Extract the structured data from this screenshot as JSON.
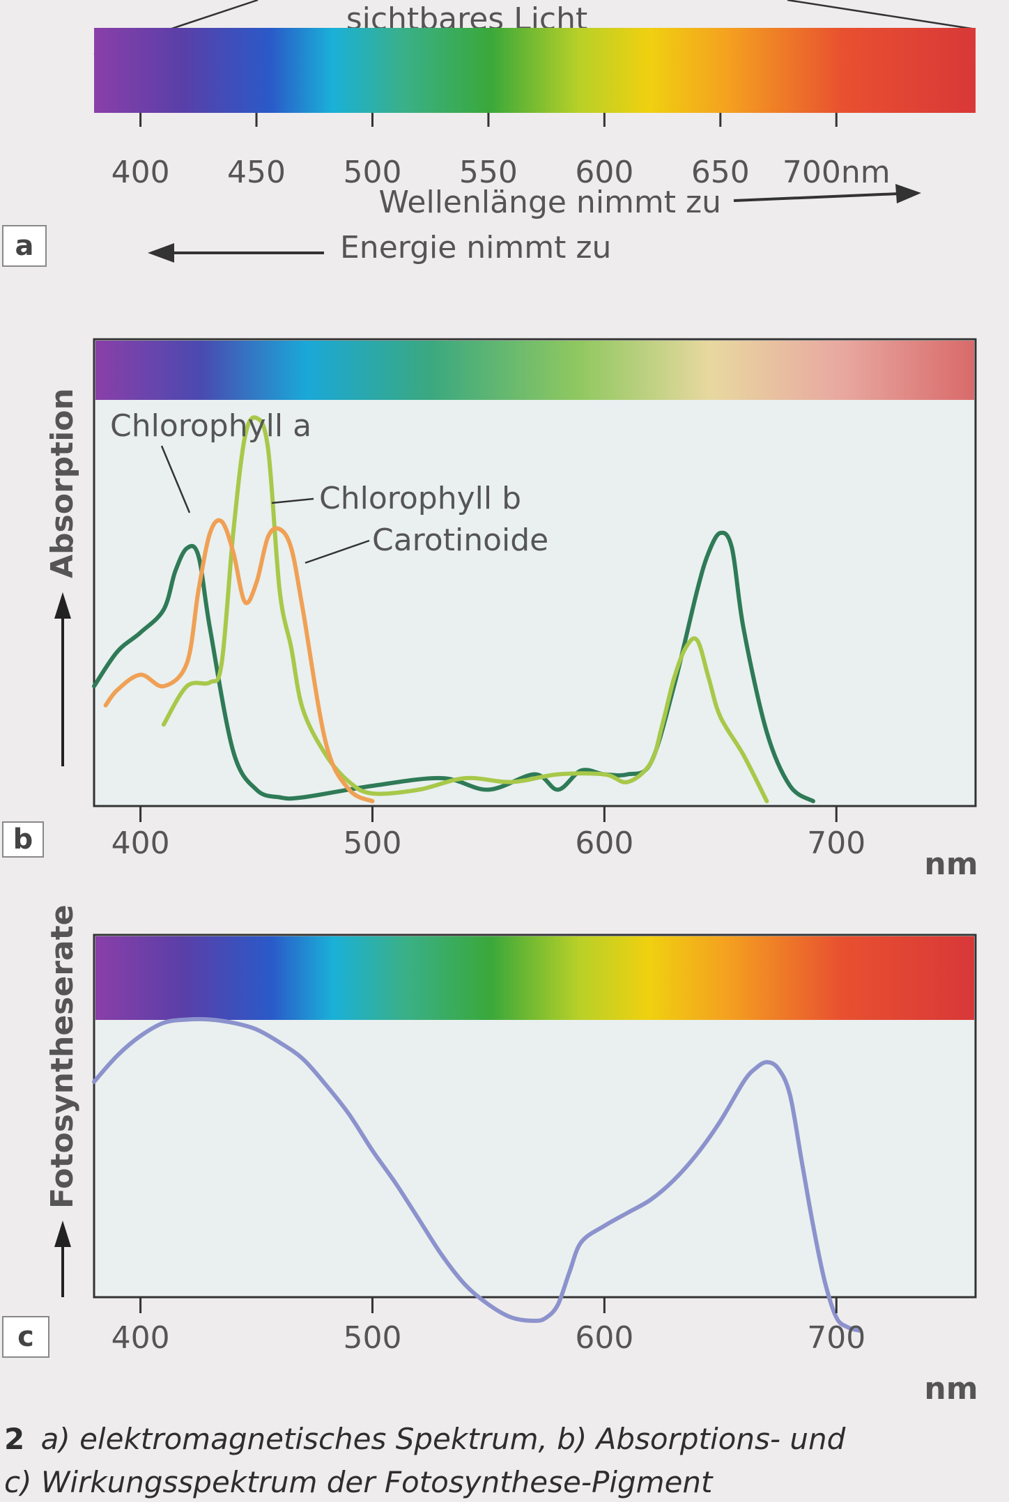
{
  "colors": {
    "chlorophyll_a": "#2f7a57",
    "chlorophyll_b": "#a8c84a",
    "carotinoide": "#f0a055",
    "action": "#8c92cc",
    "plot_bg": "#e9f0ef",
    "spectrum": [
      "#8a3fa8",
      "#5a3fa8",
      "#2a5ac8",
      "#1ab0d8",
      "#3ab08a",
      "#3aa83a",
      "#b8d028",
      "#f0d010",
      "#f4a020",
      "#e85030",
      "#d83838"
    ]
  },
  "chart_data": [
    {
      "panel": "a",
      "type": "spectrum-scale",
      "title": "sichtbares Licht",
      "x_ticks": [
        400,
        450,
        500,
        550,
        600,
        650,
        700
      ],
      "x_unit": "nm",
      "xlim": [
        380,
        760
      ],
      "arrow_right_label": "Wellenlänge nimmt zu",
      "arrow_left_label": "Energie nimmt zu"
    },
    {
      "panel": "b",
      "type": "line",
      "ylabel": "Absorption",
      "xlabel": "nm",
      "xlim": [
        380,
        760
      ],
      "ylim": [
        0,
        1
      ],
      "x_ticks": [
        400,
        500,
        600,
        700
      ],
      "series": [
        {
          "name": "Chlorophyll a",
          "x": [
            380,
            390,
            400,
            410,
            415,
            420,
            425,
            430,
            440,
            450,
            460,
            470,
            500,
            530,
            550,
            570,
            580,
            590,
            600,
            610,
            620,
            630,
            640,
            645,
            650,
            655,
            660,
            670,
            680,
            690
          ],
          "y": [
            0.3,
            0.39,
            0.44,
            0.5,
            0.6,
            0.66,
            0.64,
            0.45,
            0.13,
            0.03,
            0.01,
            0.01,
            0.04,
            0.06,
            0.03,
            0.07,
            0.03,
            0.08,
            0.07,
            0.07,
            0.1,
            0.3,
            0.55,
            0.65,
            0.7,
            0.66,
            0.45,
            0.18,
            0.04,
            0.0
          ]
        },
        {
          "name": "Chlorophyll b",
          "x": [
            410,
            420,
            430,
            435,
            440,
            445,
            450,
            455,
            460,
            465,
            470,
            480,
            490,
            500,
            520,
            540,
            560,
            580,
            600,
            610,
            620,
            625,
            630,
            635,
            640,
            645,
            650,
            660,
            670
          ],
          "y": [
            0.2,
            0.3,
            0.31,
            0.36,
            0.7,
            0.95,
            1.0,
            0.92,
            0.55,
            0.4,
            0.24,
            0.12,
            0.05,
            0.02,
            0.03,
            0.06,
            0.05,
            0.07,
            0.07,
            0.05,
            0.1,
            0.2,
            0.32,
            0.4,
            0.42,
            0.32,
            0.22,
            0.12,
            0.0
          ]
        },
        {
          "name": "Carotinoide",
          "x": [
            385,
            390,
            400,
            410,
            420,
            425,
            430,
            435,
            440,
            445,
            450,
            455,
            460,
            465,
            470,
            480,
            490,
            500
          ],
          "y": [
            0.25,
            0.29,
            0.33,
            0.3,
            0.36,
            0.55,
            0.7,
            0.73,
            0.65,
            0.52,
            0.57,
            0.69,
            0.71,
            0.66,
            0.5,
            0.15,
            0.03,
            0.0
          ]
        }
      ]
    },
    {
      "panel": "c",
      "type": "line",
      "ylabel": "Fotosyntheserate",
      "xlabel": "nm",
      "xlim": [
        380,
        760
      ],
      "ylim": [
        0,
        1
      ],
      "x_ticks": [
        400,
        500,
        600,
        700
      ],
      "series": [
        {
          "name": "Wirkungsspektrum",
          "x": [
            380,
            390,
            400,
            410,
            420,
            430,
            440,
            450,
            460,
            470,
            480,
            490,
            500,
            510,
            520,
            530,
            540,
            550,
            560,
            570,
            575,
            580,
            585,
            590,
            600,
            610,
            620,
            630,
            640,
            650,
            660,
            665,
            670,
            675,
            680,
            685,
            690,
            695,
            700,
            705,
            710
          ],
          "y": [
            0.76,
            0.84,
            0.9,
            0.94,
            0.95,
            0.95,
            0.94,
            0.92,
            0.88,
            0.83,
            0.75,
            0.66,
            0.55,
            0.45,
            0.34,
            0.23,
            0.14,
            0.08,
            0.04,
            0.03,
            0.04,
            0.08,
            0.18,
            0.27,
            0.32,
            0.36,
            0.4,
            0.46,
            0.54,
            0.64,
            0.76,
            0.8,
            0.82,
            0.8,
            0.72,
            0.52,
            0.32,
            0.15,
            0.04,
            0.01,
            0.0
          ]
        }
      ]
    }
  ],
  "panel_labels": {
    "a": "a",
    "b": "b",
    "c": "c"
  },
  "caption": {
    "line1_number": "2",
    "line1_text": "a) elektromagnetisches Spektrum, b) Absorptions- und",
    "line2_text": "c) Wirkungsspektrum der Fotosynthese-Pigment"
  }
}
